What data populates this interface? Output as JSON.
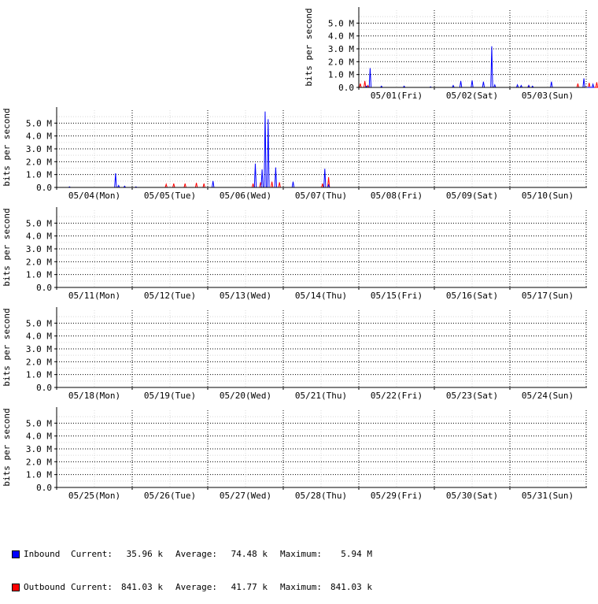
{
  "chart_data": {
    "type": "line",
    "ylabel": "bits per second",
    "y_ticks": [
      "0.0",
      "1.0 M",
      "2.0 M",
      "3.0 M",
      "4.0 M",
      "5.0 M"
    ],
    "ylim": [
      0,
      6.0
    ],
    "y_unit": "M bits per second",
    "grid": true,
    "weeks": [
      {
        "days": [
          "05/01(Fri)",
          "05/02(Sat)",
          "05/03(Sun)"
        ],
        "inbound": [
          [
            0.1,
            0.1
          ],
          [
            0.15,
            1.5
          ],
          [
            0.3,
            0.1
          ],
          [
            0.6,
            0.1
          ],
          [
            0.95,
            0.05
          ],
          [
            1.25,
            0.15
          ],
          [
            1.35,
            0.5
          ],
          [
            1.5,
            0.55
          ],
          [
            1.65,
            0.45
          ],
          [
            1.76,
            3.2
          ],
          [
            1.8,
            0.2
          ],
          [
            2.1,
            0.2
          ],
          [
            2.15,
            0.15
          ],
          [
            2.25,
            0.15
          ],
          [
            2.3,
            0.1
          ],
          [
            2.55,
            0.45
          ],
          [
            2.98,
            0.7
          ],
          [
            3.1,
            0.25
          ]
        ],
        "outbound": [
          [
            0.02,
            0.3
          ],
          [
            0.08,
            0.5
          ],
          [
            0.12,
            0.15
          ],
          [
            2.9,
            0.3
          ],
          [
            3.05,
            0.35
          ],
          [
            3.15,
            0.4
          ],
          [
            3.25,
            0.3
          ],
          [
            3.45,
            0.15
          ],
          [
            2.25,
            0.15
          ]
        ]
      },
      {
        "days": [
          "05/04(Mon)",
          "05/05(Tue)",
          "05/06(Wed)",
          "05/07(Thu)",
          "05/08(Fri)",
          "05/09(Sat)",
          "05/10(Sun)"
        ],
        "inbound": [
          [
            0.17,
            0.05
          ],
          [
            0.78,
            1.1
          ],
          [
            0.82,
            0.15
          ],
          [
            0.9,
            0.1
          ],
          [
            1.05,
            0.05
          ],
          [
            2.07,
            0.5
          ],
          [
            2.63,
            1.85
          ],
          [
            2.72,
            1.4
          ],
          [
            2.76,
            5.9
          ],
          [
            2.8,
            5.3
          ],
          [
            2.9,
            1.55
          ],
          [
            3.13,
            0.45
          ],
          [
            3.55,
            1.45
          ],
          [
            3.6,
            0.2
          ]
        ],
        "outbound": [
          [
            1.45,
            0.25
          ],
          [
            1.55,
            0.3
          ],
          [
            1.7,
            0.3
          ],
          [
            1.85,
            0.35
          ],
          [
            1.95,
            0.3
          ],
          [
            2.6,
            0.3
          ],
          [
            2.7,
            0.4
          ],
          [
            2.85,
            0.45
          ],
          [
            2.95,
            0.4
          ],
          [
            3.52,
            0.3
          ],
          [
            3.6,
            0.8
          ]
        ]
      },
      {
        "days": [
          "05/11(Mon)",
          "05/12(Tue)",
          "05/13(Wed)",
          "05/14(Thu)",
          "05/15(Fri)",
          "05/16(Sat)",
          "05/17(Sun)"
        ],
        "inbound": [],
        "outbound": []
      },
      {
        "days": [
          "05/18(Mon)",
          "05/19(Tue)",
          "05/20(Wed)",
          "05/21(Thu)",
          "05/22(Fri)",
          "05/23(Sat)",
          "05/24(Sun)"
        ],
        "inbound": [],
        "outbound": []
      },
      {
        "days": [
          "05/25(Mon)",
          "05/26(Tue)",
          "05/27(Wed)",
          "05/28(Thu)",
          "05/29(Fri)",
          "05/30(Sat)",
          "05/31(Sun)"
        ],
        "inbound": [],
        "outbound": []
      }
    ],
    "series": [
      {
        "name": "Inbound",
        "color": "#0000ff"
      },
      {
        "name": "Outbound",
        "color": "#ff0000"
      }
    ]
  },
  "legend": {
    "rows": [
      {
        "name": "Inbound",
        "color": "#0000ff",
        "current_label": "Current:",
        "current": "35.96 k",
        "average_label": "Average:",
        "average": "74.48 k",
        "maximum_label": "Maximum:",
        "maximum": "5.94 M"
      },
      {
        "name": "Outbound",
        "color": "#ff0000",
        "current_label": "Current:",
        "current": "841.03 k",
        "average_label": "Average:",
        "average": "41.77 k",
        "maximum_label": "Maximum:",
        "maximum": "841.03 k"
      }
    ]
  }
}
